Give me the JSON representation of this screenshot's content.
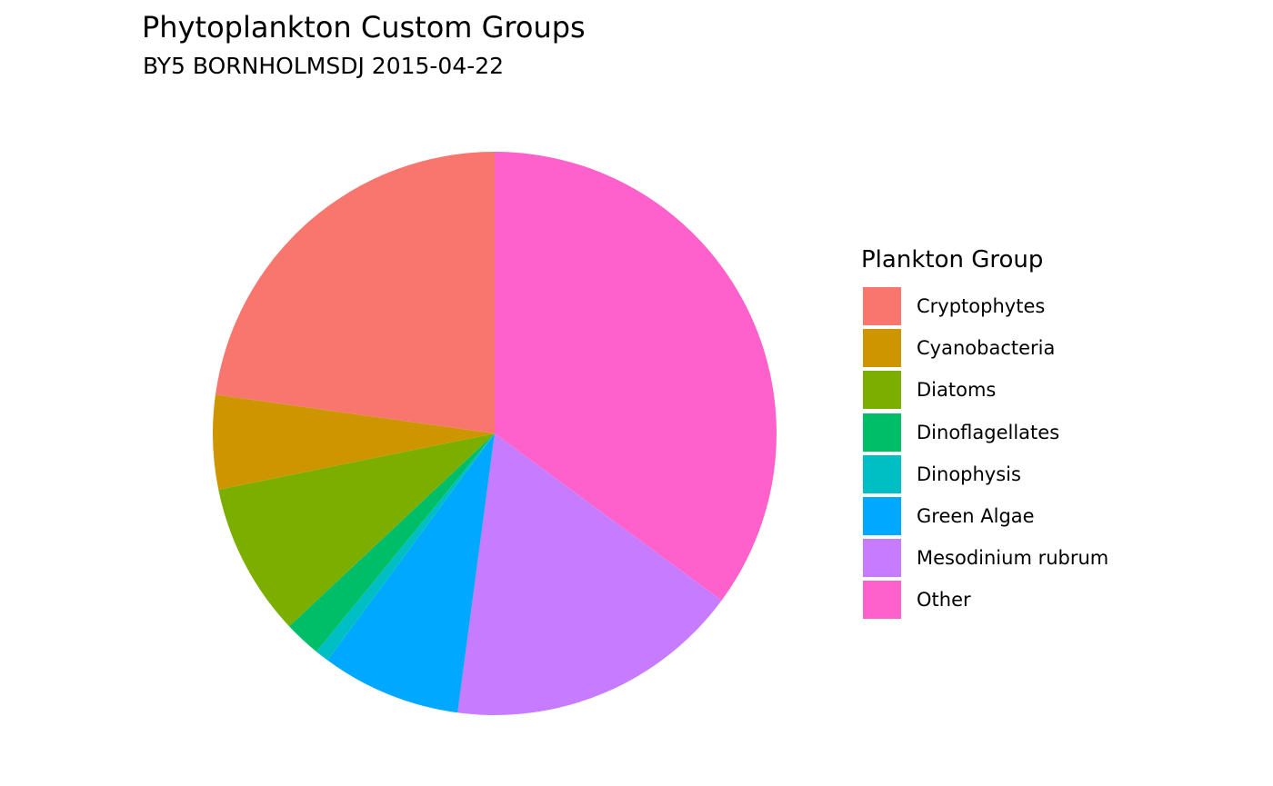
{
  "chart_data": {
    "type": "pie",
    "title": "Phytoplankton Custom Groups",
    "subtitle": "BY5 BORNHOLMSDJ 2015-04-22",
    "legend_title": "Plankton Group",
    "legend_position": "right",
    "start_angle_deg": 0,
    "direction": "clockwise",
    "order": [
      "Other",
      "Mesodinium rubrum",
      "Green Algae",
      "Dinophysis",
      "Dinoflagellates",
      "Diatoms",
      "Cyanobacteria",
      "Cryptophytes"
    ],
    "slices": [
      {
        "name": "Cryptophytes",
        "percent": 22.8,
        "color": "#F8766D"
      },
      {
        "name": "Cyanobacteria",
        "percent": 5.4,
        "color": "#CD9600"
      },
      {
        "name": "Diatoms",
        "percent": 8.8,
        "color": "#7CAE00"
      },
      {
        "name": "Dinoflagellates",
        "percent": 2.1,
        "color": "#00BE67"
      },
      {
        "name": "Dinophysis",
        "percent": 0.8,
        "color": "#00BFC4"
      },
      {
        "name": "Green Algae",
        "percent": 8.0,
        "color": "#00A9FF"
      },
      {
        "name": "Mesodinium rubrum",
        "percent": 17.0,
        "color": "#C77CFF"
      },
      {
        "name": "Other",
        "percent": 35.1,
        "color": "#FF61CC"
      }
    ]
  }
}
